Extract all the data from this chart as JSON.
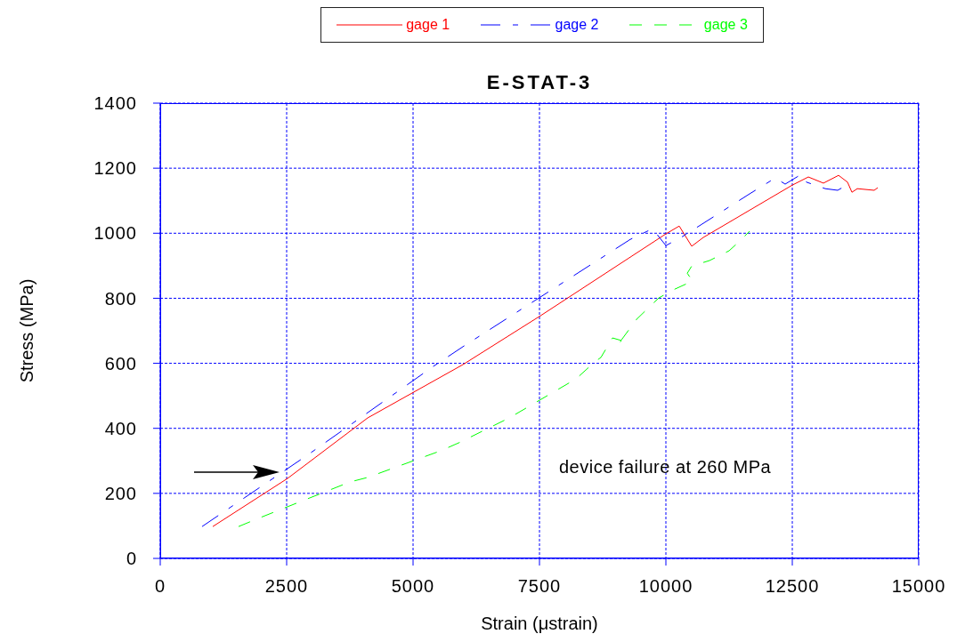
{
  "chart_data": {
    "type": "line",
    "title": "E-STAT-3",
    "xlabel": "Strain  (μstrain)",
    "ylabel": "Stress  (MPa)",
    "xlim": [
      0,
      15000
    ],
    "xticks": [
      0,
      2500,
      5000,
      7500,
      10000,
      12500,
      15000
    ],
    "ylim": [
      0,
      1400
    ],
    "yticks": [
      0,
      200,
      400,
      600,
      800,
      1000,
      1200,
      1400
    ],
    "grid": true,
    "legend": "top",
    "marker": "none",
    "annotations": [
      "device failure at 260 MPa"
    ],
    "series": [
      {
        "name": "gage 1",
        "color": "#ff0000",
        "line_style": "solid",
        "x": [
          1039,
          2518,
          4102,
          5986,
          7518,
          10000,
          10264,
          10511,
          10740,
          12500,
          12817,
          13116,
          13415,
          13592,
          13680,
          13786,
          14120,
          14190
        ],
        "values": [
          98,
          246,
          432,
          596,
          746,
          998,
          1022,
          960,
          987,
          1148,
          1173,
          1154,
          1178,
          1157,
          1126,
          1137,
          1132,
          1140
        ]
      },
      {
        "name": "gage 2",
        "color": "#0000ff",
        "line_style": "dashed",
        "x": [
          827,
          2905,
          5405,
          5986,
          9296,
          9736,
          10000,
          10300,
          11655,
          12165,
          12359,
          12676,
          12782,
          13152,
          13398,
          13521
        ],
        "values": [
          98,
          317,
          591,
          651,
          981,
          1014,
          962,
          987,
          1121,
          1170,
          1151,
          1181,
          1157,
          1137,
          1132,
          1143
        ]
      },
      {
        "name": "gage 3",
        "color": "#00ff00",
        "line_style": "dashed",
        "x": [
          1549,
          1937,
          3750,
          4102,
          5546,
          5898,
          6902,
          8222,
          8592,
          8715,
          8944,
          9120,
          9032,
          9419,
          9859,
          10176,
          10528,
          10423,
          10511,
          10863,
          11250,
          11461,
          11655
        ],
        "values": [
          98,
          123,
          235,
          249,
          331,
          355,
          432,
          552,
          604,
          618,
          678,
          670,
          653,
          735,
          801,
          828,
          853,
          877,
          899,
          916,
          946,
          976,
          1006
        ]
      }
    ]
  }
}
